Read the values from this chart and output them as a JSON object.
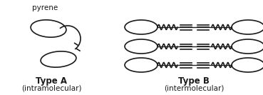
{
  "background_color": "#ffffff",
  "line_color": "#1a1a1a",
  "title_A": "Type A",
  "subtitle_A": "(intramolecular)",
  "title_B": "Type B",
  "subtitle_B": "(intermolecular)",
  "pyrene_label": "pyrene",
  "label_fontsize": 7.5,
  "title_fontsize": 8.5,
  "lw": 1.2
}
